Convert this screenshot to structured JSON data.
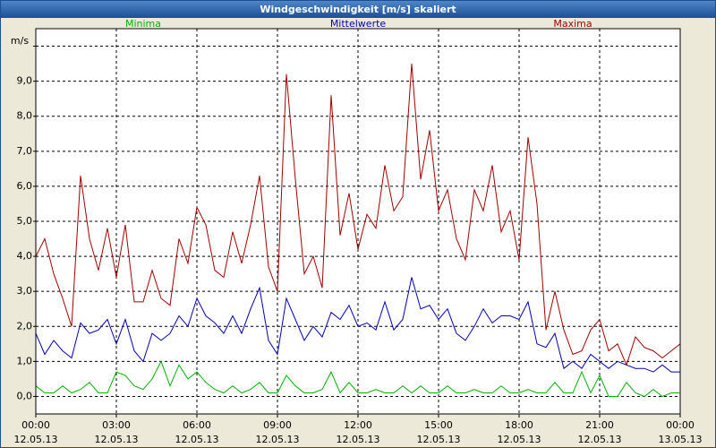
{
  "chart_data": {
    "type": "line",
    "title": "Windgeschwindigkeit [m/s] skaliert",
    "ylabel": "m/s",
    "x": [
      0,
      20,
      40,
      60,
      80,
      100,
      120,
      140,
      160,
      180,
      200,
      220,
      240,
      260,
      280,
      300,
      320,
      340,
      360,
      380,
      400,
      420,
      440,
      460,
      480,
      500,
      520,
      540,
      560,
      580,
      600,
      620,
      640,
      660,
      680,
      700,
      720,
      740,
      760,
      780,
      800,
      820,
      840,
      860,
      880,
      900,
      920,
      940,
      960,
      980,
      1000,
      1020,
      1040,
      1060,
      1080,
      1100,
      1120,
      1140,
      1160,
      1180,
      1200,
      1220,
      1240,
      1260,
      1280,
      1300,
      1320,
      1340,
      1360,
      1380,
      1400,
      1420,
      1440
    ],
    "xlim": [
      0,
      1440
    ],
    "xticks": [
      {
        "value": 0,
        "label": "00:00",
        "date": "12.05.13"
      },
      {
        "value": 180,
        "label": "03:00",
        "date": "12.05.13"
      },
      {
        "value": 360,
        "label": "06:00",
        "date": "12.05.13"
      },
      {
        "value": 540,
        "label": "09:00",
        "date": "12.05.13"
      },
      {
        "value": 720,
        "label": "12:00",
        "date": "12.05.13"
      },
      {
        "value": 900,
        "label": "15:00",
        "date": "12.05.13"
      },
      {
        "value": 1080,
        "label": "18:00",
        "date": "12.05.13"
      },
      {
        "value": 1260,
        "label": "21:00",
        "date": "12.05.13"
      },
      {
        "value": 1440,
        "label": "00:00",
        "date": "13.05.13"
      }
    ],
    "ylim": [
      -0.5,
      10.5
    ],
    "yticks": [
      {
        "value": 0,
        "label": "0,0"
      },
      {
        "value": 1,
        "label": "1,0"
      },
      {
        "value": 2,
        "label": "2,0"
      },
      {
        "value": 3,
        "label": "3,0"
      },
      {
        "value": 4,
        "label": "4,0"
      },
      {
        "value": 5,
        "label": "5,0"
      },
      {
        "value": 6,
        "label": "6,0"
      },
      {
        "value": 7,
        "label": "7,0"
      },
      {
        "value": 8,
        "label": "8,0"
      },
      {
        "value": 9,
        "label": "9,0"
      },
      {
        "value": 10,
        "label": ""
      }
    ],
    "grid": true,
    "series": [
      {
        "name": "Minima",
        "color": "#00b000",
        "values": [
          0.3,
          0.1,
          0.1,
          0.3,
          0.1,
          0.2,
          0.4,
          0.1,
          0.1,
          0.7,
          0.6,
          0.3,
          0.2,
          0.5,
          1.0,
          0.3,
          0.9,
          0.5,
          0.7,
          0.4,
          0.2,
          0.1,
          0.3,
          0.1,
          0.2,
          0.4,
          0.1,
          0.1,
          0.6,
          0.3,
          0.1,
          0.1,
          0.2,
          0.7,
          0.1,
          0.4,
          0.1,
          0.1,
          0.2,
          0.1,
          0.1,
          0.3,
          0.1,
          0.3,
          0.1,
          0.1,
          0.3,
          0.1,
          0.1,
          0.2,
          0.1,
          0.1,
          0.3,
          0.1,
          0.1,
          0.2,
          0.1,
          0.1,
          0.4,
          0.1,
          0.1,
          0.7,
          0.1,
          0.6,
          0.0,
          0.0,
          0.4,
          0.1,
          0.0,
          0.2,
          0.0,
          0.1,
          0.1
        ]
      },
      {
        "name": "Mittelwerte",
        "color": "#0000b0",
        "values": [
          1.8,
          1.2,
          1.6,
          1.3,
          1.1,
          2.1,
          1.8,
          1.9,
          2.2,
          1.5,
          2.2,
          1.3,
          1.0,
          1.8,
          1.6,
          1.8,
          2.3,
          2.0,
          2.8,
          2.3,
          2.1,
          1.8,
          2.3,
          1.8,
          2.5,
          3.1,
          1.6,
          1.2,
          2.8,
          2.2,
          1.6,
          2.0,
          1.7,
          2.4,
          2.2,
          2.6,
          2.0,
          2.1,
          1.9,
          2.7,
          1.9,
          2.2,
          3.4,
          2.5,
          2.6,
          2.2,
          2.5,
          1.8,
          1.6,
          2.0,
          2.5,
          2.1,
          2.3,
          2.3,
          2.2,
          2.7,
          1.5,
          1.4,
          1.8,
          0.8,
          1.0,
          0.8,
          1.2,
          1.0,
          0.8,
          1.0,
          0.9,
          0.8,
          0.8,
          0.7,
          0.9,
          0.7,
          0.7
        ]
      },
      {
        "name": "Maxima",
        "color": "#a00000",
        "values": [
          4.0,
          4.5,
          3.5,
          2.8,
          2.0,
          6.3,
          4.5,
          3.6,
          4.8,
          3.4,
          4.9,
          2.7,
          2.7,
          3.6,
          2.8,
          2.6,
          4.5,
          3.8,
          5.4,
          4.9,
          3.6,
          3.4,
          4.7,
          3.8,
          4.9,
          6.3,
          3.7,
          3.0,
          9.2,
          6.2,
          3.5,
          4.0,
          3.1,
          8.6,
          4.6,
          5.8,
          4.2,
          5.2,
          4.8,
          6.6,
          5.3,
          5.7,
          9.5,
          6.2,
          7.6,
          5.3,
          5.9,
          4.5,
          3.9,
          5.9,
          5.3,
          6.6,
          4.7,
          5.3,
          3.9,
          7.4,
          5.5,
          1.9,
          3.0,
          1.9,
          1.2,
          1.3,
          1.9,
          2.2,
          1.3,
          1.5,
          0.9,
          1.7,
          1.4,
          1.3,
          1.1,
          1.3,
          1.5
        ]
      }
    ]
  }
}
